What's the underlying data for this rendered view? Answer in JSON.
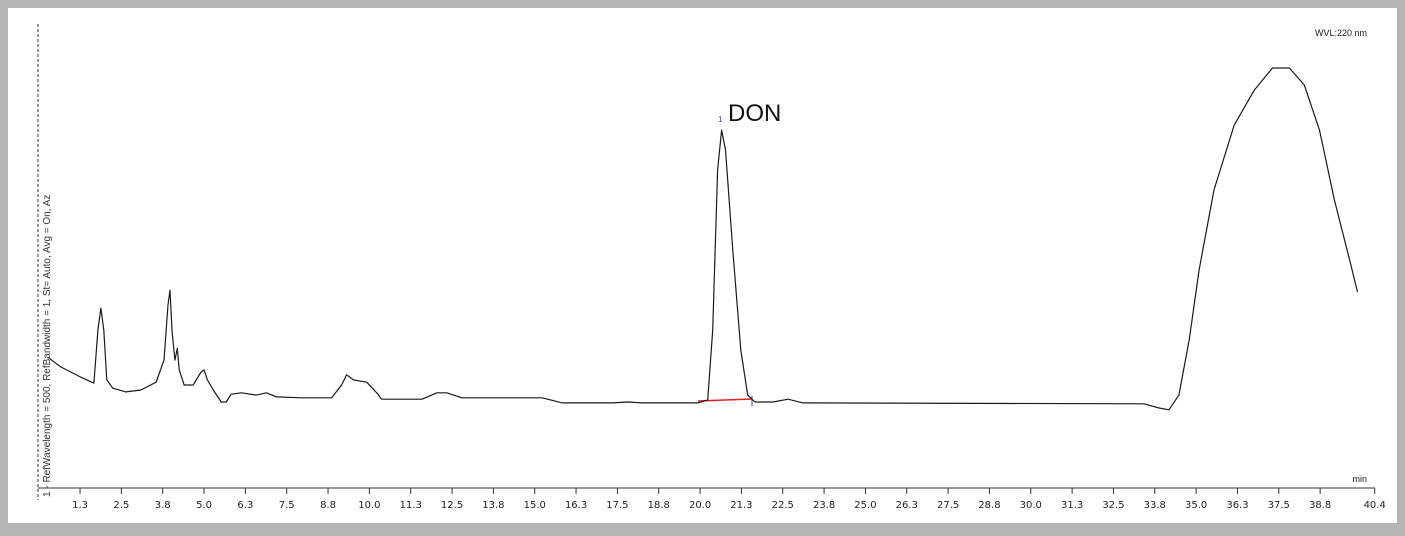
{
  "chart_data": {
    "type": "line",
    "annotation": "DON",
    "peak_label": "1",
    "detector_label": "WVL:220 nm",
    "x_unit": "min",
    "side_label": "1 - RefWavelength = 500, RefBandwidth = 1, St= Auto, Avg = On, Az",
    "color": "#1a1a1a",
    "xlim": [
      0,
      40.4
    ],
    "ylim": [
      0,
      100
    ],
    "xticks": [
      {
        "value": 1.25,
        "label": "1.3"
      },
      2.5,
      {
        "value": 3.75,
        "label": "3.8"
      },
      {
        "value": 5,
        "label": "5.0"
      },
      {
        "value": 6.25,
        "label": "6.3"
      },
      7.5,
      {
        "value": 8.75,
        "label": "8.8"
      },
      {
        "value": 10,
        "label": "10.0"
      },
      {
        "value": 11.25,
        "label": "11.3"
      },
      12.5,
      {
        "value": 13.75,
        "label": "13.8"
      },
      {
        "value": 15,
        "label": "15.0"
      },
      {
        "value": 16.25,
        "label": "16.3"
      },
      17.5,
      {
        "value": 18.75,
        "label": "18.8"
      },
      {
        "value": 20,
        "label": "20.0"
      },
      {
        "value": 21.25,
        "label": "21.3"
      },
      22.5,
      {
        "value": 23.75,
        "label": "23.8"
      },
      {
        "value": 25,
        "label": "25.0"
      },
      {
        "value": 26.25,
        "label": "26.3"
      },
      27.5,
      {
        "value": 28.75,
        "label": "28.8"
      },
      {
        "value": 30,
        "label": "30.0"
      },
      {
        "value": 31.25,
        "label": "31.3"
      },
      32.5,
      {
        "value": 33.75,
        "label": "33.8"
      },
      {
        "value": 35,
        "label": "35.0"
      },
      {
        "value": 36.25,
        "label": "36.3"
      },
      37.5,
      {
        "value": 38.75,
        "label": "38.8"
      },
      40.4
    ],
    "x": [
      0.3,
      0.67,
      1.27,
      1.67,
      1.79,
      1.88,
      1.97,
      2.06,
      2.24,
      2.64,
      3.09,
      3.55,
      3.79,
      3.91,
      3.97,
      4.03,
      4.12,
      4.19,
      4.25,
      4.4,
      4.67,
      4.91,
      5.0,
      5.1,
      5.28,
      5.52,
      5.67,
      5.82,
      6.13,
      6.58,
      6.89,
      7.19,
      7.95,
      8.86,
      9.16,
      9.31,
      9.52,
      9.92,
      10.22,
      10.37,
      11.59,
      12.04,
      12.34,
      12.8,
      15.23,
      15.83,
      17.35,
      17.8,
      18.26,
      19.93,
      20.23,
      20.38,
      20.53,
      20.65,
      20.77,
      20.99,
      21.23,
      21.44,
      21.66,
      22.2,
      22.66,
      23.11,
      33.42,
      33.88,
      34.18,
      34.48,
      34.79,
      35.09,
      35.54,
      36.15,
      36.76,
      37.31,
      37.82,
      38.27,
      38.73,
      39.18,
      39.64,
      39.88
    ],
    "values": [
      28.3,
      26.3,
      24.1,
      22.8,
      34.3,
      39.1,
      34.3,
      23.5,
      21.7,
      20.9,
      21.3,
      23.0,
      27.8,
      39.8,
      43.0,
      34.3,
      27.8,
      30.4,
      25.7,
      22.4,
      22.4,
      25.2,
      25.7,
      23.5,
      21.3,
      18.7,
      18.7,
      20.4,
      20.7,
      20.2,
      20.7,
      19.8,
      19.6,
      19.6,
      22.4,
      24.6,
      23.5,
      23.0,
      20.7,
      19.3,
      19.3,
      20.7,
      20.7,
      19.6,
      19.6,
      18.5,
      18.5,
      18.7,
      18.5,
      18.5,
      19.1,
      34.3,
      69.1,
      77.8,
      73.5,
      51.7,
      30.0,
      20.2,
      18.7,
      18.7,
      19.3,
      18.5,
      18.3,
      17.4,
      17.0,
      20.2,
      32.2,
      47.4,
      64.8,
      78.9,
      86.5,
      91.3,
      91.3,
      87.6,
      77.8,
      62.6,
      49.6,
      42.6
    ]
  }
}
